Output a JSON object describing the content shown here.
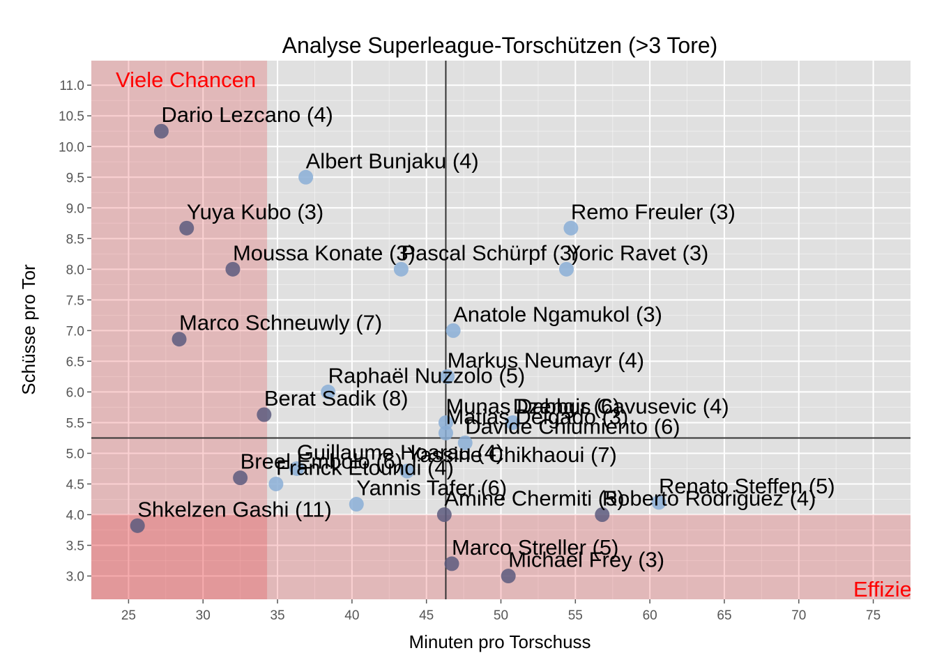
{
  "chart_data": {
    "type": "scatter",
    "title": "Analyse Superleague-Torschützen (>3 Tore)",
    "xlabel": "Minuten pro Torschuss",
    "ylabel": "Schüsse pro Tor",
    "xlim": [
      22.5,
      77.5
    ],
    "ylim": [
      2.62,
      11.4
    ],
    "xticks": [
      25,
      30,
      35,
      40,
      45,
      50,
      55,
      60,
      65,
      70,
      75
    ],
    "yticks": [
      3.0,
      3.5,
      4.0,
      4.5,
      5.0,
      5.5,
      6.0,
      6.5,
      7.0,
      7.5,
      8.0,
      8.5,
      9.0,
      9.5,
      10.0,
      10.5,
      11.0
    ],
    "ref_lines": {
      "x": 46.3,
      "y": 5.25
    },
    "zones": [
      {
        "label": "Viele Chancen",
        "x_max": 34.3,
        "color": "#e41a1c"
      },
      {
        "label": "Effizient",
        "y_max": 4.0,
        "color": "#e41a1c"
      }
    ],
    "grid": true,
    "colors": {
      "panel_background": "#e0e0e0",
      "point_blue": "#8aaed6",
      "point_dark": "#5c5a7e",
      "zone_fill": "#e41a1c",
      "zone_text": "#ff0000",
      "ref_line": "#333333"
    },
    "points": [
      {
        "name": "Dario Lezcano (4)",
        "x": 27.2,
        "y": 10.25
      },
      {
        "name": "Albert Bunjaku (4)",
        "x": 36.9,
        "y": 9.5
      },
      {
        "name": "Yuya Kubo (3)",
        "x": 28.9,
        "y": 8.67
      },
      {
        "name": "Remo Freuler (3)",
        "x": 54.7,
        "y": 8.67
      },
      {
        "name": "Moussa Konate (3)",
        "x": 32.0,
        "y": 8.0
      },
      {
        "name": "Pascal Schürpf (3)",
        "x": 43.3,
        "y": 8.0
      },
      {
        "name": "Yoric Ravet (3)",
        "x": 54.4,
        "y": 8.0
      },
      {
        "name": "Anatole Ngamukol (3)",
        "x": 46.8,
        "y": 7.0
      },
      {
        "name": "Marco Schneuwly (7)",
        "x": 28.4,
        "y": 6.86
      },
      {
        "name": "Markus Neumayr (4)",
        "x": 46.4,
        "y": 6.25
      },
      {
        "name": "Raphaël Nuzzolo (5)",
        "x": 38.4,
        "y": 6.0
      },
      {
        "name": "Berat Sadik (8)",
        "x": 34.1,
        "y": 5.63
      },
      {
        "name": "Munas Dabbur (6)",
        "x": 46.3,
        "y": 5.5
      },
      {
        "name": "Matias Delgado (3)",
        "x": 46.3,
        "y": 5.33
      },
      {
        "name": "Dzengis Cavusevic (4)",
        "x": 50.8,
        "y": 5.5
      },
      {
        "name": "Davide Chiumiento (6)",
        "x": 47.6,
        "y": 5.17
      },
      {
        "name": "Yassine Chikhaoui (7)",
        "x": 43.7,
        "y": 4.71
      },
      {
        "name": "Breel Embolo (6)",
        "x": 32.5,
        "y": 4.6
      },
      {
        "name": "Guillaume Hoarau (4)",
        "x": 36.3,
        "y": 4.75
      },
      {
        "name": "Franck Etoundi (4)",
        "x": 34.9,
        "y": 4.5
      },
      {
        "name": "Yannis Tafer (6)",
        "x": 40.3,
        "y": 4.17
      },
      {
        "name": "Renato Steffen (5)",
        "x": 60.6,
        "y": 4.2
      },
      {
        "name": "Roberto Rodriguez (4)",
        "x": 56.8,
        "y": 4.0
      },
      {
        "name": "Amine Chermiti (5)",
        "x": 46.2,
        "y": 4.0
      },
      {
        "name": "Shkelzen Gashi (11)",
        "x": 25.6,
        "y": 3.82
      },
      {
        "name": "Marco Streller (5)",
        "x": 46.7,
        "y": 3.2
      },
      {
        "name": "Michael Frey (3)",
        "x": 50.5,
        "y": 3.0
      }
    ]
  }
}
